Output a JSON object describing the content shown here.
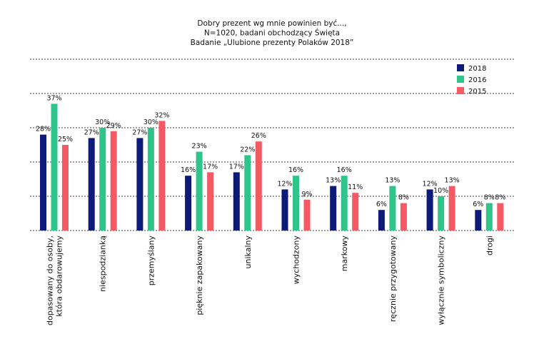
{
  "chart_data": {
    "type": "bar",
    "title_lines": [
      "Dobry prezent wg mnie powinien być...,",
      "N=1020, badani obchodzący Święta",
      "Badanie „Ulubione prezenty Polaków 2018”"
    ],
    "categories": [
      [
        "dopasowany do osoby,",
        "która obdarowujemy"
      ],
      [
        "niespodzianką"
      ],
      [
        "przemyślany"
      ],
      [
        "pięknie zapakowany"
      ],
      [
        "unikalny"
      ],
      [
        "wychodzony"
      ],
      [
        "markowy"
      ],
      [
        "ręcznie przygotowany"
      ],
      [
        "wyłącznie symboliczny"
      ],
      [
        "drogi"
      ]
    ],
    "series": [
      {
        "name": "2018",
        "color": "#0d1a78",
        "values": [
          28,
          27,
          27,
          16,
          17,
          12,
          13,
          6,
          12,
          6
        ]
      },
      {
        "name": "2016",
        "color": "#2fc48a",
        "values": [
          37,
          30,
          30,
          23,
          22,
          16,
          16,
          13,
          10,
          8
        ]
      },
      {
        "name": "2015",
        "color": "#f55a64",
        "values": [
          25,
          29,
          32,
          17,
          26,
          9,
          11,
          8,
          13,
          8
        ]
      }
    ],
    "value_suffix": "%",
    "ylim": [
      0,
      50
    ],
    "grid": true,
    "legend_position": "top-right"
  }
}
